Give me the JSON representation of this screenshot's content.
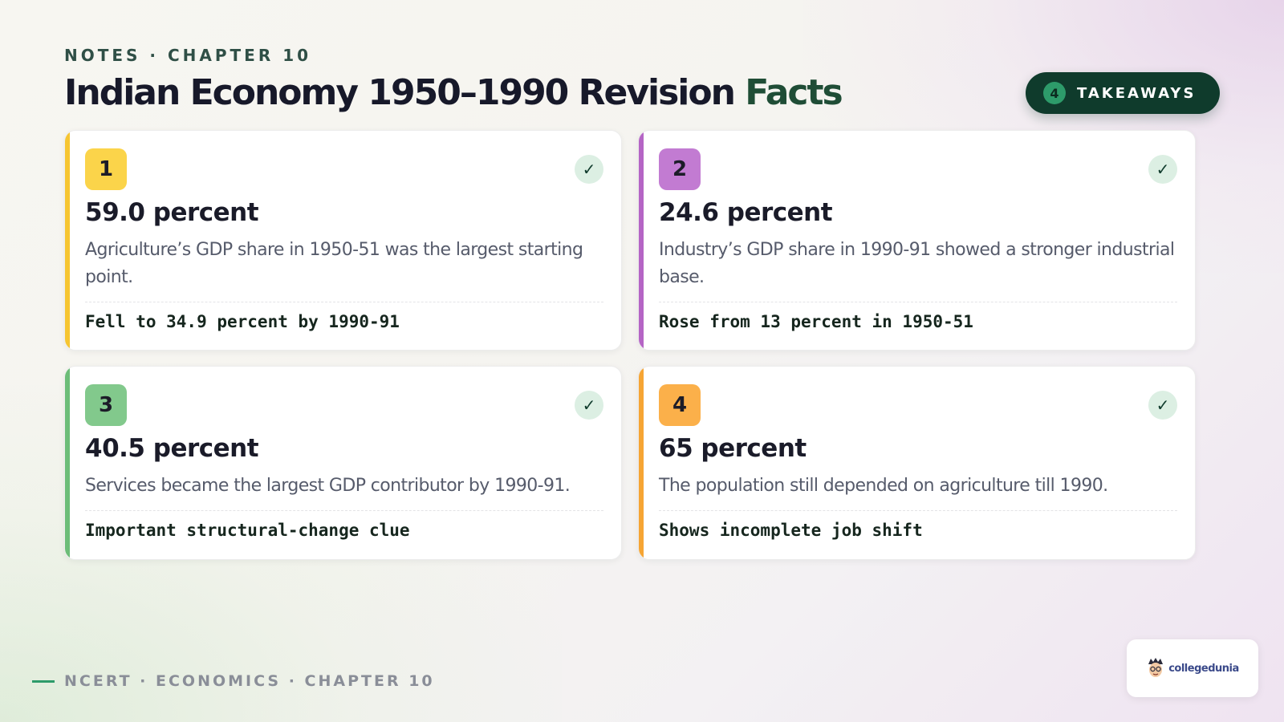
{
  "header": {
    "eyebrow": "NOTES · CHAPTER 10",
    "title_main": "Indian Economy 1950–1990 Revision ",
    "title_accent": "Facts",
    "pill_count": "4",
    "pill_label": "TAKEAWAYS"
  },
  "cards": [
    {
      "number": "1",
      "headline": "59.0 percent",
      "body": "Agriculture’s GDP share in 1950-51 was the largest starting point.",
      "note": "Fell to 34.9 percent by 1990-91",
      "check": "✓",
      "bar_color": "#f6c531",
      "badge_color": "#fbd44a"
    },
    {
      "number": "2",
      "headline": "24.6 percent",
      "body": "Industry’s GDP share in 1990-91 showed a stronger industrial base.",
      "note": "Rose from 13 percent in 1950-51",
      "check": "✓",
      "bar_color": "#b565c5",
      "badge_color": "#c27bd2"
    },
    {
      "number": "3",
      "headline": "40.5 percent",
      "body": "Services became the largest GDP contributor by 1990-91.",
      "note": "Important structural-change clue",
      "check": "✓",
      "bar_color": "#6cbd78",
      "badge_color": "#82c98c"
    },
    {
      "number": "4",
      "headline": "65 percent",
      "body": "The population still depended on agriculture till 1990.",
      "note": "Shows incomplete job shift",
      "check": "✓",
      "bar_color": "#f6a534",
      "badge_color": "#fbb04a"
    }
  ],
  "footer": {
    "text": "NCERT · ECONOMICS · CHAPTER 10"
  },
  "logo": {
    "text": "collegedunia"
  }
}
